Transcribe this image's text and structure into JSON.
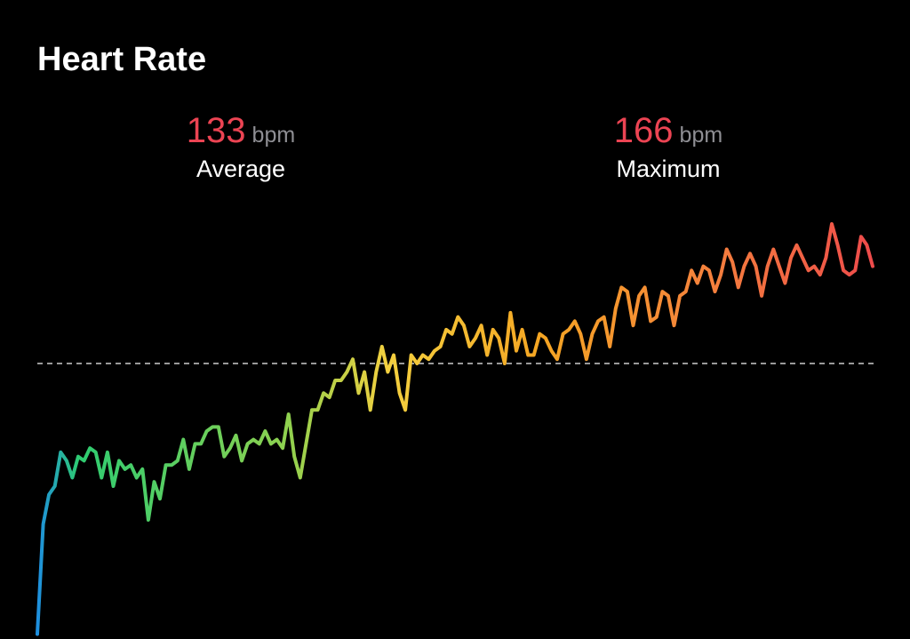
{
  "title": "Heart Rate",
  "stats": [
    {
      "value": 133,
      "unit": "bpm",
      "label": "Average"
    },
    {
      "value": 166,
      "unit": "bpm",
      "label": "Maximum"
    }
  ],
  "chart_data": {
    "type": "line",
    "values": [
      69,
      95,
      102,
      104,
      112,
      110,
      106,
      111,
      110,
      113,
      112,
      106,
      112,
      104,
      110,
      108,
      109,
      106,
      108,
      96,
      105,
      101,
      109,
      109,
      110,
      115,
      108,
      114,
      114,
      117,
      118,
      118,
      111,
      113,
      116,
      110,
      114,
      115,
      114,
      117,
      114,
      115,
      113,
      121,
      111,
      106,
      114,
      122,
      122,
      126,
      125,
      129,
      129,
      131,
      134,
      126,
      131,
      122,
      131,
      137,
      131,
      135,
      126,
      122,
      135,
      133,
      135,
      134,
      136,
      137,
      141,
      140,
      144,
      142,
      137,
      139,
      142,
      135,
      141,
      139,
      133,
      145,
      136,
      141,
      135,
      135,
      140,
      139,
      136,
      134,
      140,
      141,
      143,
      140,
      134,
      140,
      143,
      144,
      137,
      146,
      151,
      150,
      142,
      149,
      151,
      143,
      144,
      150,
      149,
      142,
      149,
      150,
      155,
      152,
      156,
      155,
      150,
      154,
      160,
      157,
      151,
      156,
      159,
      156,
      149,
      156,
      160,
      156,
      152,
      158,
      161,
      158,
      155,
      156,
      154,
      158,
      166,
      161,
      155,
      154,
      155,
      163,
      161,
      156
    ]
  }
}
